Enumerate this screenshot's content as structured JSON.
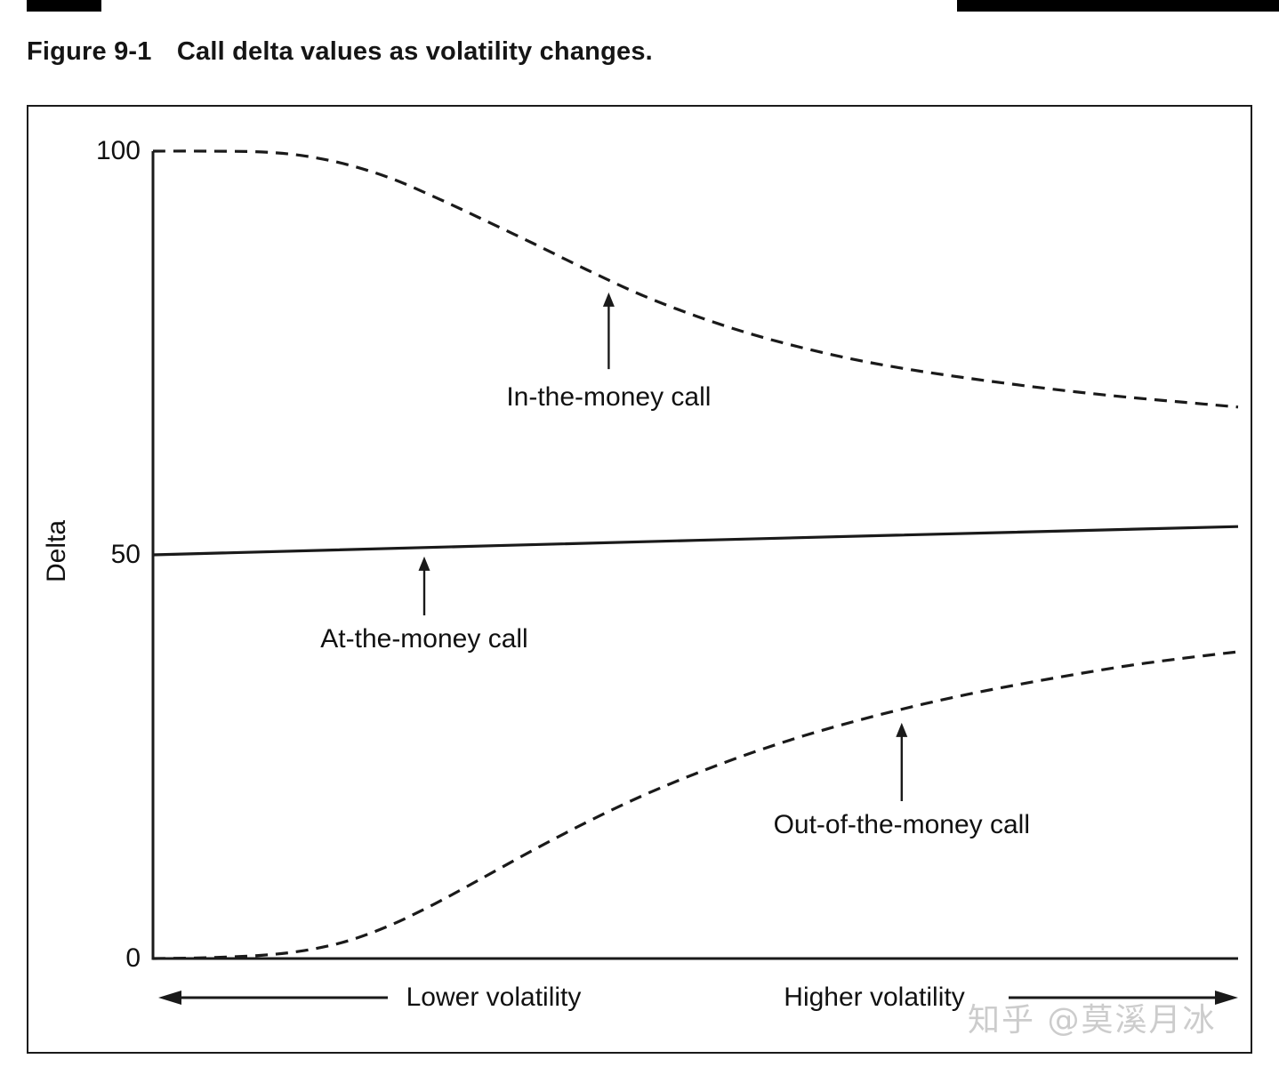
{
  "page": {
    "watermark": "知乎 @莫溪月冰"
  },
  "figure": {
    "label": "Figure 9-1",
    "caption": "Call delta values as volatility changes."
  },
  "chart_data": {
    "type": "line",
    "title": "Call delta values as volatility changes",
    "xlabel": "",
    "ylabel": "Delta",
    "ylim": [
      0,
      100
    ],
    "yticks": [
      0,
      50,
      100
    ],
    "grid": false,
    "legend": "none",
    "x_axis_labels": {
      "left": "Lower volatility",
      "right": "Higher volatility"
    },
    "x_range_note": "x axis is unlabeled volatility, increasing left to right (0 = lowest shown, 1 = highest shown)",
    "series": [
      {
        "name": "In-the-money call",
        "style": "dashed",
        "x": [
          0,
          0.05,
          0.1,
          0.14,
          0.18,
          0.22,
          0.26,
          0.3,
          0.35,
          0.4,
          0.45,
          0.5,
          0.55,
          0.6,
          0.65,
          0.7,
          0.75,
          0.8,
          0.85,
          0.9,
          0.95,
          1.0
        ],
        "values": [
          100,
          100,
          99.9,
          99.4,
          98.3,
          96.6,
          94.3,
          91.8,
          88.6,
          85.3,
          82.2,
          79.6,
          77.4,
          75.6,
          74.1,
          72.9,
          71.9,
          71.0,
          70.2,
          69.5,
          68.9,
          68.3
        ]
      },
      {
        "name": "At-the-money call",
        "style": "solid",
        "x": [
          0,
          0.5,
          1.0
        ],
        "values": [
          50,
          51.8,
          53.5
        ]
      },
      {
        "name": "Out-of-the-money call",
        "style": "dashed",
        "x": [
          0,
          0.05,
          0.1,
          0.14,
          0.18,
          0.22,
          0.26,
          0.3,
          0.35,
          0.4,
          0.45,
          0.5,
          0.55,
          0.6,
          0.65,
          0.7,
          0.75,
          0.8,
          0.85,
          0.9,
          0.95,
          1.0
        ],
        "values": [
          0,
          0.1,
          0.4,
          1.0,
          2.2,
          4.2,
          6.8,
          9.7,
          13.4,
          16.9,
          20.1,
          22.9,
          25.4,
          27.6,
          29.5,
          31.2,
          32.7,
          34.0,
          35.2,
          36.3,
          37.2,
          38.0
        ]
      }
    ],
    "annotations": [
      {
        "label": "In-the-money call",
        "x": 0.42,
        "label_delta": 69.5,
        "arrow_from_delta": 73.0,
        "arrow_to_delta": 82.5
      },
      {
        "label": "At-the-money call",
        "x": 0.25,
        "label_delta": 39.5,
        "arrow_from_delta": 42.5,
        "arrow_to_delta": 49.8
      },
      {
        "label": "Out-of-the-money call",
        "x": 0.69,
        "label_delta": 16.5,
        "arrow_from_delta": 19.5,
        "arrow_to_delta": 29.2
      }
    ]
  }
}
